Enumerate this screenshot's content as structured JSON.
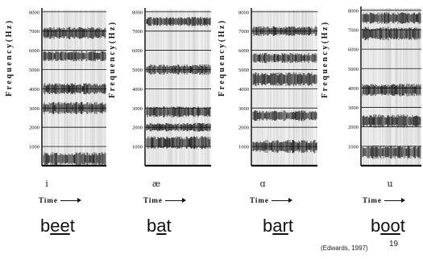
{
  "y_axis_label": "Frequency(Hz)",
  "y_ticks": [
    "8000",
    "7000",
    "6000",
    "5000",
    "4000",
    "3000",
    "2000",
    "1000"
  ],
  "time_label": "Time",
  "panels": [
    {
      "vowel_symbol": "i",
      "word_pre": "b",
      "word_ul": "ee",
      "word_post": "t",
      "formants_hz": [
        350,
        3000,
        4000,
        5700,
        6900
      ]
    },
    {
      "vowel_symbol": "æ",
      "word_pre": "b",
      "word_ul": "a",
      "word_post": "t",
      "formants_hz": [
        1200,
        2000,
        2800,
        5000,
        7500
      ]
    },
    {
      "vowel_symbol": "ɑ",
      "word_pre": "b",
      "word_ul": "ar",
      "word_post": "t",
      "formants_hz": [
        1000,
        2600,
        4500,
        5600,
        7000
      ]
    },
    {
      "vowel_symbol": "u",
      "word_pre": "b",
      "word_ul": "oo",
      "word_post": "t",
      "formants_hz": [
        700,
        2300,
        3900,
        6800,
        7600
      ]
    }
  ],
  "citation": "(Edwards, 1997)",
  "page_number": "19",
  "colors": {
    "ink": "#111111",
    "paper": "#ffffff"
  }
}
